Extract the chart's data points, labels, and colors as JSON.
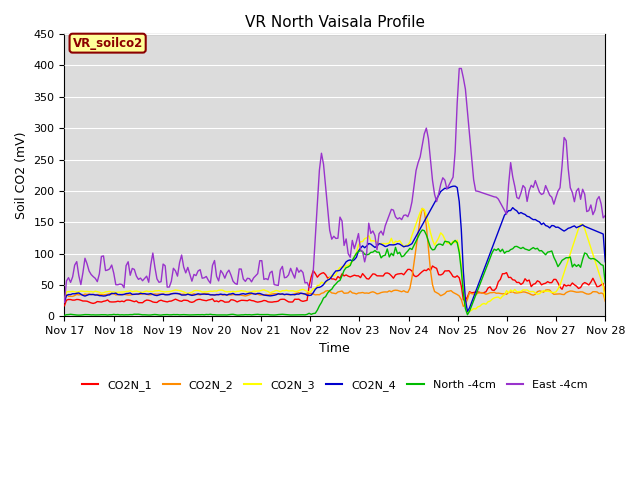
{
  "title": "VR North Vaisala Profile",
  "xlabel": "Time",
  "ylabel": "Soil CO2 (mV)",
  "ylim": [
    0,
    450
  ],
  "annotation_text": "VR_soilco2",
  "annotation_color": "#8B0000",
  "annotation_bg": "#FFFF99",
  "plot_bg": "#DCDCDC",
  "legend_entries": [
    "CO2N_1",
    "CO2N_2",
    "CO2N_3",
    "CO2N_4",
    "North -4cm",
    "East -4cm"
  ],
  "legend_colors": [
    "#FF0000",
    "#FF8C00",
    "#FFFF00",
    "#0000CD",
    "#00BB00",
    "#9933CC"
  ],
  "x_tick_labels": [
    "Nov 17",
    "Nov 18",
    "Nov 19",
    "Nov 20",
    "Nov 21",
    "Nov 22",
    "Nov 23",
    "Nov 24",
    "Nov 25",
    "Nov 26",
    "Nov 27",
    "Nov 28"
  ],
  "seed": 42
}
